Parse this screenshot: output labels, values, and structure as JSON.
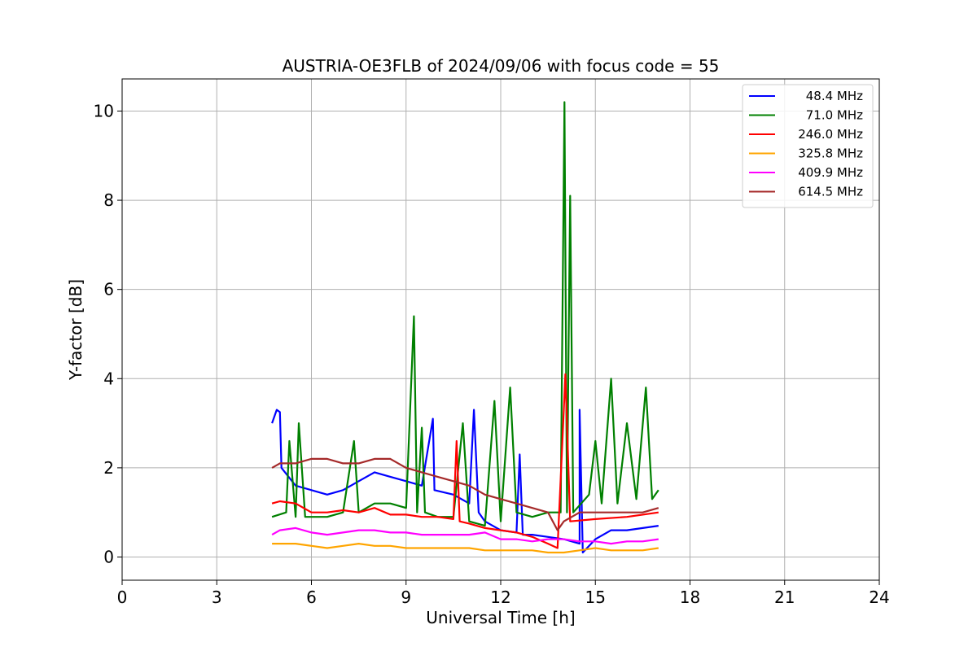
{
  "chart_data": {
    "type": "line",
    "title": "AUSTRIA-OE3FLB of 2024/09/06 with focus code = 55",
    "xlabel": "Universal Time [h]",
    "ylabel": "Y-factor [dB]",
    "xlim": [
      0,
      24
    ],
    "ylim": [
      -0.52,
      10.72
    ],
    "xticks": [
      0,
      3,
      6,
      9,
      12,
      15,
      18,
      21,
      24
    ],
    "yticks": [
      0,
      2,
      4,
      6,
      8,
      10
    ],
    "grid": true,
    "legend_position": "top-right",
    "series": [
      {
        "name": "48.4 MHz",
        "color": "#0000ff",
        "points": [
          [
            4.75,
            3.0
          ],
          [
            4.9,
            3.3
          ],
          [
            5.0,
            3.25
          ],
          [
            5.05,
            2.0
          ],
          [
            5.5,
            1.6
          ],
          [
            6.0,
            1.5
          ],
          [
            6.5,
            1.4
          ],
          [
            7.0,
            1.5
          ],
          [
            7.5,
            1.7
          ],
          [
            8.0,
            1.9
          ],
          [
            8.5,
            1.8
          ],
          [
            9.0,
            1.7
          ],
          [
            9.5,
            1.6
          ],
          [
            9.85,
            3.1
          ],
          [
            9.9,
            1.5
          ],
          [
            10.5,
            1.4
          ],
          [
            11.0,
            1.2
          ],
          [
            11.15,
            3.3
          ],
          [
            11.3,
            1.0
          ],
          [
            11.5,
            0.8
          ],
          [
            12.0,
            0.6
          ],
          [
            12.5,
            0.55
          ],
          [
            12.6,
            2.3
          ],
          [
            12.7,
            0.5
          ],
          [
            13.0,
            0.5
          ],
          [
            13.5,
            0.45
          ],
          [
            14.0,
            0.4
          ],
          [
            14.5,
            0.3
          ],
          [
            14.5,
            3.3
          ],
          [
            14.6,
            0.1
          ],
          [
            15.0,
            0.4
          ],
          [
            15.5,
            0.6
          ],
          [
            16.0,
            0.6
          ],
          [
            16.5,
            0.65
          ],
          [
            17.0,
            0.7
          ]
        ]
      },
      {
        "name": "71.0 MHz",
        "color": "#008000",
        "points": [
          [
            4.75,
            0.9
          ],
          [
            5.2,
            1.0
          ],
          [
            5.3,
            2.6
          ],
          [
            5.5,
            0.9
          ],
          [
            5.6,
            3.0
          ],
          [
            5.8,
            0.9
          ],
          [
            6.5,
            0.9
          ],
          [
            7.0,
            1.0
          ],
          [
            7.35,
            2.6
          ],
          [
            7.5,
            1.0
          ],
          [
            8.0,
            1.2
          ],
          [
            8.5,
            1.2
          ],
          [
            9.0,
            1.1
          ],
          [
            9.25,
            5.4
          ],
          [
            9.35,
            1.0
          ],
          [
            9.5,
            2.9
          ],
          [
            9.6,
            1.0
          ],
          [
            10.0,
            0.9
          ],
          [
            10.5,
            0.9
          ],
          [
            10.8,
            3.0
          ],
          [
            11.0,
            0.8
          ],
          [
            11.5,
            0.7
          ],
          [
            11.8,
            3.5
          ],
          [
            12.0,
            0.8
          ],
          [
            12.3,
            3.8
          ],
          [
            12.5,
            1.0
          ],
          [
            13.0,
            0.9
          ],
          [
            13.5,
            1.0
          ],
          [
            13.9,
            1.0
          ],
          [
            14.02,
            10.2
          ],
          [
            14.1,
            1.0
          ],
          [
            14.15,
            4.6
          ],
          [
            14.2,
            8.1
          ],
          [
            14.3,
            1.0
          ],
          [
            14.8,
            1.4
          ],
          [
            15.0,
            2.6
          ],
          [
            15.2,
            1.2
          ],
          [
            15.5,
            4.0
          ],
          [
            15.7,
            1.2
          ],
          [
            16.0,
            3.0
          ],
          [
            16.3,
            1.3
          ],
          [
            16.6,
            3.8
          ],
          [
            16.8,
            1.3
          ],
          [
            17.0,
            1.5
          ]
        ]
      },
      {
        "name": "246.0 MHz",
        "color": "#ff0000",
        "points": [
          [
            4.75,
            1.2
          ],
          [
            5.0,
            1.25
          ],
          [
            5.5,
            1.2
          ],
          [
            6.0,
            1.0
          ],
          [
            6.5,
            1.0
          ],
          [
            7.0,
            1.05
          ],
          [
            7.5,
            1.0
          ],
          [
            8.0,
            1.1
          ],
          [
            8.5,
            0.95
          ],
          [
            9.0,
            0.95
          ],
          [
            9.5,
            0.9
          ],
          [
            10.0,
            0.9
          ],
          [
            10.5,
            0.85
          ],
          [
            10.6,
            2.6
          ],
          [
            10.7,
            0.8
          ],
          [
            11.0,
            0.75
          ],
          [
            11.5,
            0.65
          ],
          [
            12.0,
            0.6
          ],
          [
            12.5,
            0.55
          ],
          [
            13.0,
            0.45
          ],
          [
            13.5,
            0.3
          ],
          [
            13.8,
            0.2
          ],
          [
            14.0,
            3.3
          ],
          [
            14.05,
            4.1
          ],
          [
            14.2,
            0.8
          ],
          [
            15.0,
            0.85
          ],
          [
            16.0,
            0.9
          ],
          [
            17.0,
            1.0
          ]
        ]
      },
      {
        "name": "325.8 MHz",
        "color": "#ffa500",
        "points": [
          [
            4.75,
            0.3
          ],
          [
            5.5,
            0.3
          ],
          [
            6.0,
            0.25
          ],
          [
            6.5,
            0.2
          ],
          [
            7.0,
            0.25
          ],
          [
            7.5,
            0.3
          ],
          [
            8.0,
            0.25
          ],
          [
            8.5,
            0.25
          ],
          [
            9.0,
            0.2
          ],
          [
            9.5,
            0.2
          ],
          [
            10.0,
            0.2
          ],
          [
            10.5,
            0.2
          ],
          [
            11.0,
            0.2
          ],
          [
            11.5,
            0.15
          ],
          [
            12.0,
            0.15
          ],
          [
            12.5,
            0.15
          ],
          [
            13.0,
            0.15
          ],
          [
            13.5,
            0.1
          ],
          [
            14.0,
            0.1
          ],
          [
            14.5,
            0.15
          ],
          [
            15.0,
            0.2
          ],
          [
            15.5,
            0.15
          ],
          [
            16.0,
            0.15
          ],
          [
            16.5,
            0.15
          ],
          [
            17.0,
            0.2
          ]
        ]
      },
      {
        "name": "409.9 MHz",
        "color": "#ff00ff",
        "points": [
          [
            4.75,
            0.5
          ],
          [
            5.0,
            0.6
          ],
          [
            5.5,
            0.65
          ],
          [
            6.0,
            0.55
          ],
          [
            6.5,
            0.5
          ],
          [
            7.0,
            0.55
          ],
          [
            7.5,
            0.6
          ],
          [
            8.0,
            0.6
          ],
          [
            8.5,
            0.55
          ],
          [
            9.0,
            0.55
          ],
          [
            9.5,
            0.5
          ],
          [
            10.0,
            0.5
          ],
          [
            10.5,
            0.5
          ],
          [
            11.0,
            0.5
          ],
          [
            11.5,
            0.55
          ],
          [
            12.0,
            0.4
          ],
          [
            12.5,
            0.4
          ],
          [
            13.0,
            0.35
          ],
          [
            13.5,
            0.4
          ],
          [
            14.0,
            0.4
          ],
          [
            14.5,
            0.35
          ],
          [
            15.0,
            0.35
          ],
          [
            15.5,
            0.3
          ],
          [
            16.0,
            0.35
          ],
          [
            16.5,
            0.35
          ],
          [
            17.0,
            0.4
          ]
        ]
      },
      {
        "name": "614.5 MHz",
        "color": "#a52a2a",
        "points": [
          [
            4.75,
            2.0
          ],
          [
            5.0,
            2.1
          ],
          [
            5.5,
            2.1
          ],
          [
            6.0,
            2.2
          ],
          [
            6.5,
            2.2
          ],
          [
            7.0,
            2.1
          ],
          [
            7.5,
            2.1
          ],
          [
            8.0,
            2.2
          ],
          [
            8.5,
            2.2
          ],
          [
            9.0,
            2.0
          ],
          [
            9.5,
            1.9
          ],
          [
            10.0,
            1.8
          ],
          [
            10.5,
            1.7
          ],
          [
            11.0,
            1.6
          ],
          [
            11.5,
            1.4
          ],
          [
            12.0,
            1.3
          ],
          [
            12.5,
            1.2
          ],
          [
            13.0,
            1.1
          ],
          [
            13.5,
            1.0
          ],
          [
            13.8,
            0.6
          ],
          [
            14.0,
            0.8
          ],
          [
            14.5,
            1.0
          ],
          [
            15.0,
            1.0
          ],
          [
            15.5,
            1.0
          ],
          [
            16.0,
            1.0
          ],
          [
            16.5,
            1.0
          ],
          [
            17.0,
            1.1
          ]
        ]
      }
    ]
  }
}
